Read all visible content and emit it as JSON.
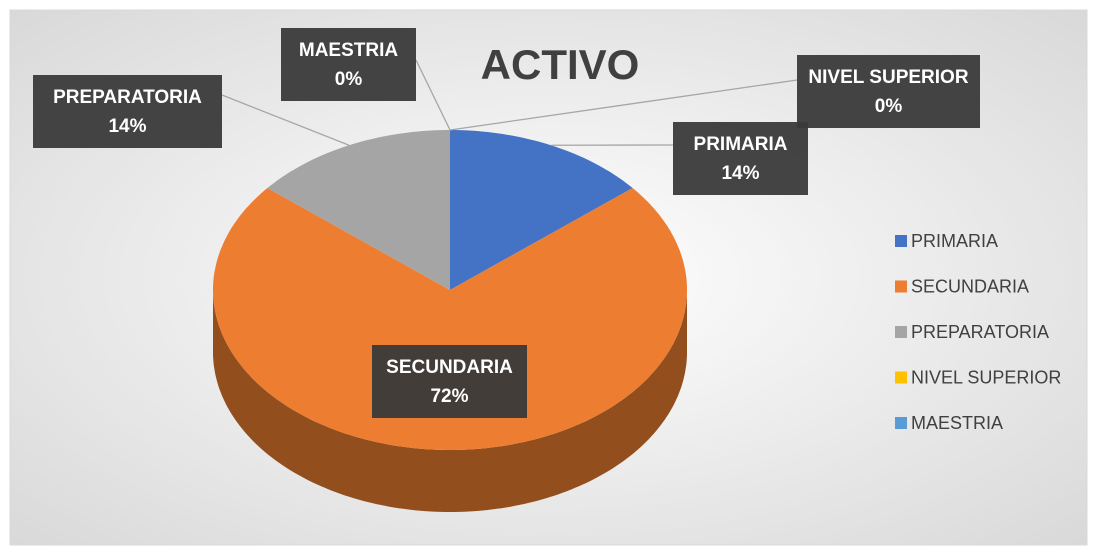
{
  "chart_data": {
    "type": "pie",
    "title": "ACTIVO",
    "categories": [
      "PRIMARIA",
      "SECUNDARIA",
      "PREPARATORIA",
      "NIVEL SUPERIOR",
      "MAESTRIA"
    ],
    "values": [
      14,
      72,
      14,
      0,
      0
    ],
    "value_labels": [
      "14%",
      "72%",
      "14%",
      "0%",
      "0%"
    ],
    "colors": [
      "#4472c4",
      "#ed7d31",
      "#a5a5a5",
      "#ffc000",
      "#5b9bd5"
    ],
    "legend": "right"
  }
}
